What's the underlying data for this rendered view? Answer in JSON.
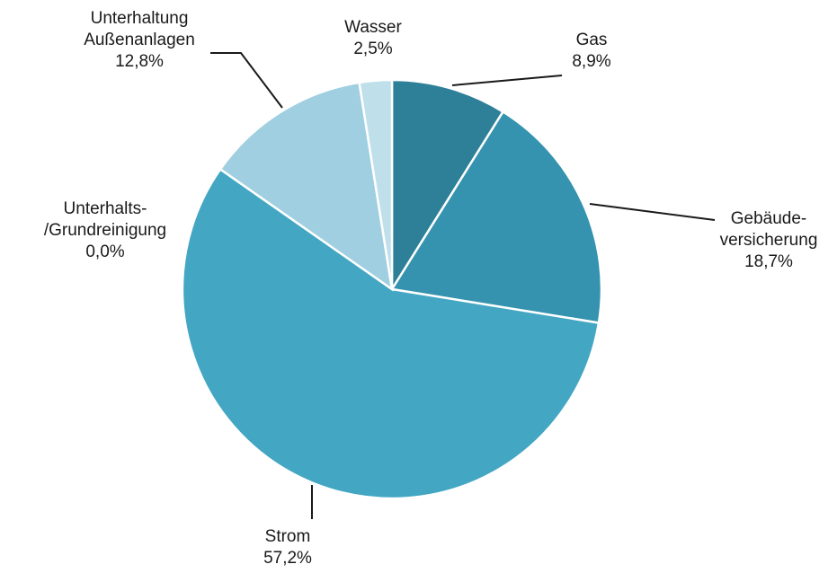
{
  "chart_data": {
    "type": "pie",
    "slices": [
      {
        "name": "Gas",
        "label_lines": [
          "Gas"
        ],
        "value": 8.9,
        "value_label": "8,9%",
        "color": "#2e7f98"
      },
      {
        "name": "Gebäudeversicherung",
        "label_lines": [
          "Gebäude-",
          "versicherung"
        ],
        "value": 18.7,
        "value_label": "18,7%",
        "color": "#3593af"
      },
      {
        "name": "Strom",
        "label_lines": [
          "Strom"
        ],
        "value": 57.2,
        "value_label": "57,2%",
        "color": "#43a6c3"
      },
      {
        "name": "Unterhalts-/Grundreinigung",
        "label_lines": [
          "Unterhalts-",
          "/Grundreinigung"
        ],
        "value": 0.0,
        "value_label": "0,0%",
        "color": "#79bcd4"
      },
      {
        "name": "Unterhaltung Außenanlagen",
        "label_lines": [
          "Unterhaltung",
          "Außenanlagen"
        ],
        "value": 12.8,
        "value_label": "12,8%",
        "color": "#9fcfe0"
      },
      {
        "name": "Wasser",
        "label_lines": [
          "Wasser"
        ],
        "value": 2.5,
        "value_label": "2,5%",
        "color": "#bfdfea"
      }
    ],
    "start_angle_deg": 0,
    "direction": "clockwise",
    "legend": "none"
  }
}
